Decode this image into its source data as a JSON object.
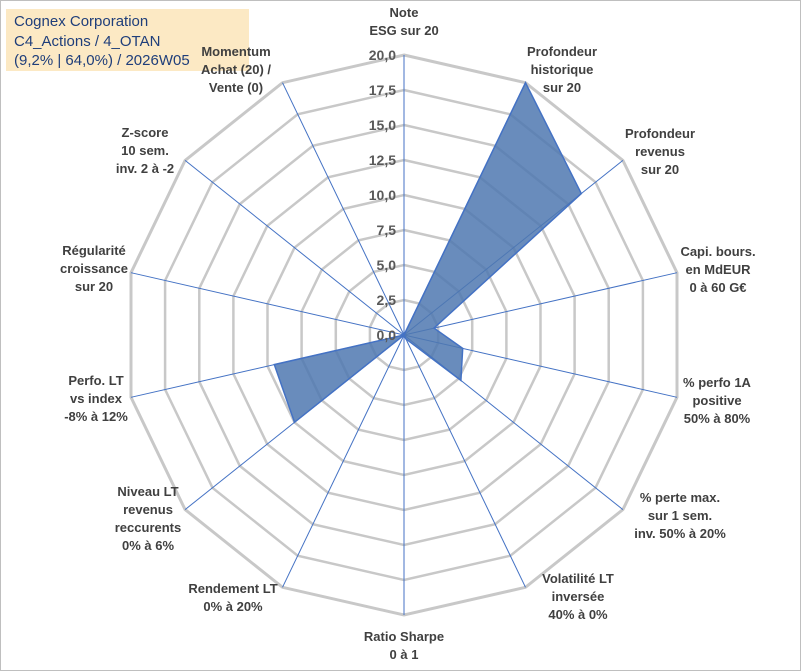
{
  "title_box": {
    "line1": "Cognex Corporation",
    "line2": "C4_Actions / 4_OTAN",
    "line3": "(9,2% | 64,0%) / 2026W05"
  },
  "chart_data": {
    "type": "radar",
    "rmax": 20,
    "ticks": [
      "0,0",
      "2,5",
      "5,0",
      "7,5",
      "10,0",
      "12,5",
      "15,0",
      "17,5",
      "20,0"
    ],
    "tick_values": [
      0,
      2.5,
      5,
      7.5,
      10,
      12.5,
      15,
      17.5,
      20
    ],
    "grid_values": [
      2.5,
      5,
      7.5,
      10,
      12.5,
      15,
      17.5,
      20
    ],
    "axes": [
      {
        "label": [
          "Note",
          "ESG sur 20"
        ]
      },
      {
        "label": [
          "Profondeur",
          "historique",
          "sur 20"
        ]
      },
      {
        "label": [
          "Profondeur",
          "revenus",
          "sur 20"
        ]
      },
      {
        "label": [
          "Capi. bours.",
          "en MdEUR",
          "0 à 60 G€"
        ]
      },
      {
        "label": [
          "% perfo 1A",
          "positive",
          "50% à 80%"
        ]
      },
      {
        "label": [
          "% perte max.",
          "sur 1 sem.",
          "inv. 50% à 20%"
        ]
      },
      {
        "label": [
          "Volatilité LT",
          "inversée",
          "40% à 0%"
        ]
      },
      {
        "label": [
          "Ratio Sharpe",
          "0 à 1"
        ]
      },
      {
        "label": [
          "Rendement LT",
          "0% à 20%"
        ]
      },
      {
        "label": [
          "Niveau LT",
          "revenus",
          "reccurents",
          "0% à 6%"
        ]
      },
      {
        "label": [
          "Perfo. LT",
          "vs index",
          "-8% à 12%"
        ]
      },
      {
        "label": [
          "Régularité",
          "croissance",
          "sur 20"
        ]
      },
      {
        "label": [
          "Z-score",
          "10 sem.",
          "inv. 2 à -2"
        ]
      },
      {
        "label": [
          "Momentum",
          "Achat (20) /",
          "Vente (0)"
        ]
      }
    ],
    "series": [
      {
        "name": "Cognex Corporation",
        "values": [
          0,
          20,
          16.2,
          2.2,
          4.3,
          5.2,
          0.3,
          0,
          0,
          10,
          9.5,
          0,
          0,
          0
        ]
      }
    ],
    "colors": {
      "fill": "#4f78b0",
      "line": "#4472c4",
      "grid": "#c8c8c8",
      "axis": "#4472c4"
    }
  }
}
